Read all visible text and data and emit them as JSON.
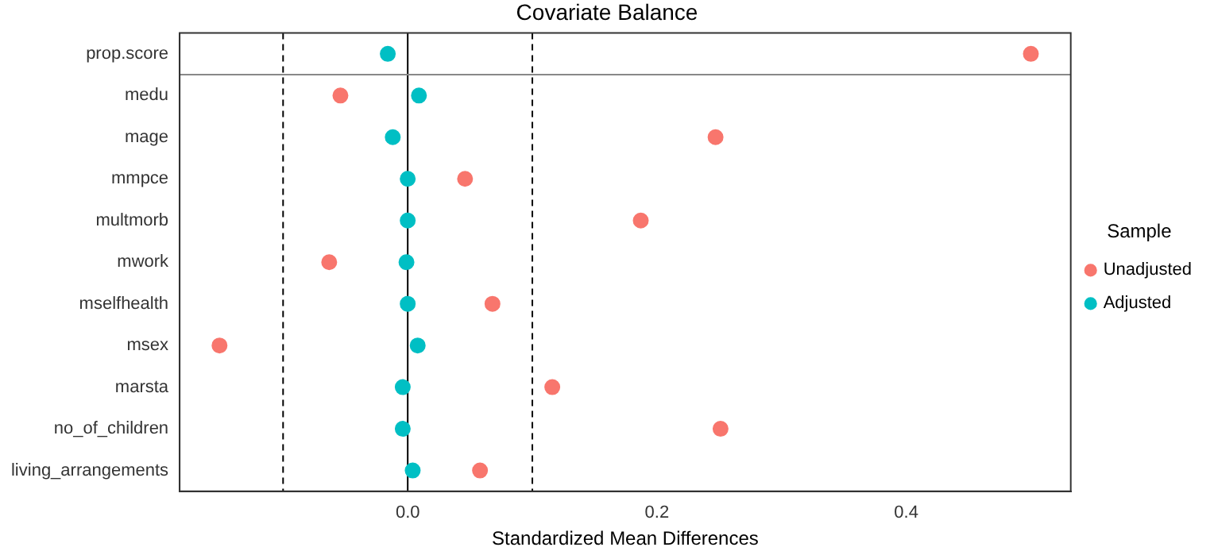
{
  "chart_data": {
    "type": "scatter",
    "title": "Covariate Balance",
    "xlabel": "Standardized Mean Differences",
    "orientation": "horizontal",
    "categories": [
      "prop.score",
      "medu",
      "mage",
      "mmpce",
      "multmorb",
      "mwork",
      "mselfhealth",
      "msex",
      "marsta",
      "no_of_children",
      "living_arrangements"
    ],
    "series": [
      {
        "name": "Unadjusted",
        "color": "#f8766d",
        "values": [
          0.5,
          -0.054,
          0.247,
          0.046,
          0.187,
          -0.063,
          0.068,
          -0.151,
          0.116,
          0.251,
          0.058
        ]
      },
      {
        "name": "Adjusted",
        "color": "#00bfc4",
        "values": [
          -0.016,
          0.009,
          -0.012,
          0.0,
          0.0,
          -0.001,
          0.0,
          0.008,
          -0.004,
          -0.004,
          0.004
        ]
      }
    ],
    "xlim": [
      -0.183,
      0.532
    ],
    "xticks": [
      {
        "value": 0,
        "label": "0.0"
      },
      0.2,
      0.4
    ],
    "ref_lines": [
      {
        "axis": "x",
        "value": 0,
        "color": "#000000",
        "line_style": "solid"
      },
      {
        "axis": "x",
        "value": -0.1,
        "color": "#000000",
        "line_style": "dashed"
      },
      {
        "axis": "x",
        "value": 0.1,
        "color": "#000000",
        "line_style": "dashed"
      },
      {
        "axis": "y",
        "value": "prop.score",
        "color": "#888888",
        "line_style": "solid"
      }
    ],
    "grid": false,
    "legend": "right",
    "legend_title": "Sample",
    "marker": "circle"
  }
}
